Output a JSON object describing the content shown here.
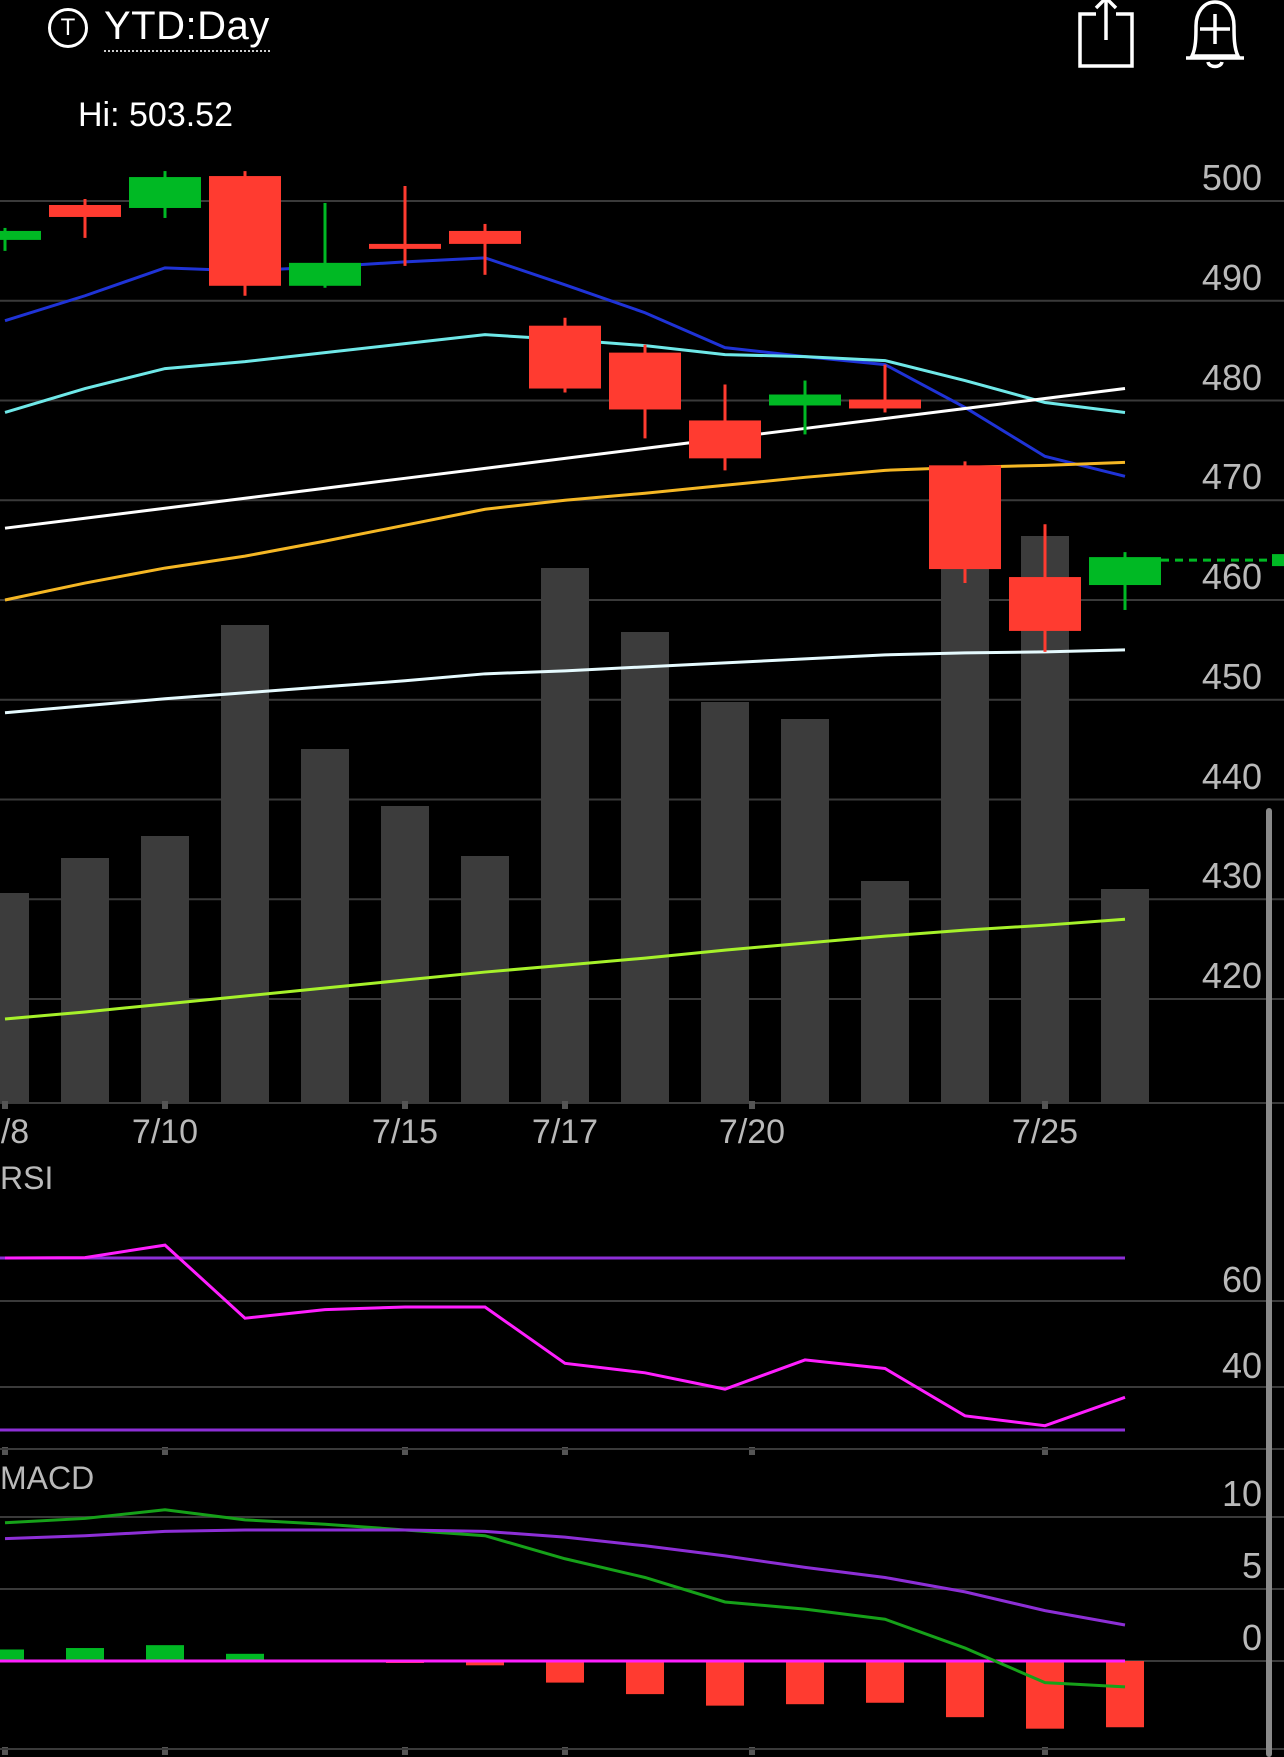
{
  "header": {
    "badge": "T",
    "title": "YTD:Day",
    "icons": [
      "share-icon",
      "add-alert-icon"
    ]
  },
  "hi_label": "Hi: 503.52",
  "chart_data": {
    "type": "candlestick",
    "x_tick_labels": [
      "/8",
      "7/10",
      "7/15",
      "7/17",
      "7/20",
      "7/25"
    ],
    "price_axis": {
      "ticks": [
        500,
        490,
        480,
        470,
        460,
        450,
        440,
        430,
        420
      ]
    },
    "candles": [
      {
        "open": 496.1,
        "close": 497.0,
        "high": 497.3,
        "low": 495.0,
        "dir": "up"
      },
      {
        "open": 499.6,
        "close": 498.4,
        "high": 500.2,
        "low": 496.3,
        "dir": "down"
      },
      {
        "open": 499.3,
        "close": 502.4,
        "high": 503.0,
        "low": 498.3,
        "dir": "up"
      },
      {
        "open": 502.5,
        "close": 491.5,
        "high": 503.0,
        "low": 490.5,
        "dir": "down"
      },
      {
        "open": 491.5,
        "close": 493.8,
        "high": 499.8,
        "low": 491.3,
        "dir": "up"
      },
      {
        "open": 495.7,
        "close": 495.2,
        "high": 501.5,
        "low": 493.5,
        "dir": "down"
      },
      {
        "open": 497.0,
        "close": 495.7,
        "high": 497.7,
        "low": 492.6,
        "dir": "down"
      },
      {
        "open": 487.5,
        "close": 481.2,
        "high": 488.3,
        "low": 480.8,
        "dir": "down"
      },
      {
        "open": 484.8,
        "close": 479.1,
        "high": 485.6,
        "low": 476.2,
        "dir": "down"
      },
      {
        "open": 478.0,
        "close": 474.2,
        "high": 481.6,
        "low": 473.0,
        "dir": "down"
      },
      {
        "open": 479.5,
        "close": 480.6,
        "high": 482.0,
        "low": 476.6,
        "dir": "up"
      },
      {
        "open": 480.1,
        "close": 479.2,
        "high": 483.6,
        "low": 478.8,
        "dir": "down"
      },
      {
        "open": 473.5,
        "close": 463.1,
        "high": 473.9,
        "low": 461.7,
        "dir": "down"
      },
      {
        "open": 462.3,
        "close": 456.9,
        "high": 467.6,
        "low": 454.8,
        "dir": "down"
      },
      {
        "open": 461.5,
        "close": 464.3,
        "high": 464.8,
        "low": 459.0,
        "dir": "up"
      }
    ],
    "last_price": 464.0,
    "volume_relative": [
      0.21,
      0.245,
      0.267,
      0.478,
      0.354,
      0.297,
      0.247,
      0.535,
      0.471,
      0.401,
      0.384,
      0.222,
      0.538,
      0.567,
      0.214
    ],
    "moving_averages": [
      {
        "color": "#1f33d6",
        "values": [
          488.0,
          490.5,
          493.3,
          493.0,
          493.4,
          493.9,
          494.3,
          491.6,
          488.8,
          485.3,
          484.4,
          483.6,
          479.3,
          474.4,
          472.4
        ]
      },
      {
        "color": "#6fe8e8",
        "values": [
          478.8,
          481.2,
          483.2,
          483.9,
          484.8,
          485.7,
          486.6,
          486.1,
          485.5,
          484.6,
          484.4,
          484.0,
          482.0,
          479.8,
          478.8
        ]
      },
      {
        "color": "#ffffff",
        "values": [
          467.2,
          468.2,
          469.2,
          470.2,
          471.2,
          472.2,
          473.2,
          474.2,
          475.2,
          476.2,
          477.2,
          478.2,
          479.2,
          480.2,
          481.2
        ]
      },
      {
        "color": "#f5b724",
        "values": [
          460.0,
          461.7,
          463.2,
          464.4,
          465.9,
          467.5,
          469.1,
          470.0,
          470.7,
          471.5,
          472.3,
          473.0,
          473.3,
          473.5,
          473.8
        ]
      },
      {
        "color": "#e6fbff",
        "values": [
          448.7,
          449.4,
          450.1,
          450.7,
          451.3,
          451.9,
          452.6,
          452.9,
          453.3,
          453.7,
          454.1,
          454.5,
          454.7,
          454.8,
          455.0
        ]
      },
      {
        "color": "#a6f12a",
        "values": [
          418.0,
          418.7,
          419.5,
          420.3,
          421.1,
          421.9,
          422.7,
          423.4,
          424.1,
          424.9,
          425.6,
          426.3,
          426.9,
          427.4,
          428.0
        ]
      }
    ],
    "rsi": {
      "title": "RSI",
      "ticks": [
        60,
        40
      ],
      "upper": 70,
      "lower": 30,
      "values": [
        70.0,
        70.1,
        73.0,
        56.0,
        58.0,
        58.6,
        58.6,
        45.5,
        43.3,
        39.5,
        46.3,
        44.3,
        33.3,
        31.0,
        37.6
      ]
    },
    "macd": {
      "title": "MACD",
      "ticks": [
        10,
        5,
        0
      ],
      "macd_line": [
        9.6,
        9.9,
        10.5,
        9.8,
        9.5,
        9.1,
        8.7,
        7.1,
        5.8,
        4.1,
        3.6,
        2.9,
        0.9,
        -1.5,
        -1.8
      ],
      "signal_line": [
        8.5,
        8.7,
        9.0,
        9.1,
        9.1,
        9.1,
        9.0,
        8.6,
        8.0,
        7.3,
        6.5,
        5.8,
        4.8,
        3.5,
        2.5
      ],
      "histogram": [
        0.8,
        0.9,
        1.1,
        0.5,
        0.1,
        -0.1,
        -0.3,
        -1.5,
        -2.3,
        -3.1,
        -3.0,
        -2.9,
        -3.9,
        -4.7,
        -4.6
      ]
    },
    "colors": {
      "up": "#00b924",
      "down": "#ff3b30",
      "volume": "#3c3c3c",
      "rsi_line": "#ff1fff",
      "rsi_band": "#8d2fd6",
      "macd_line": "#16a119",
      "signal_line": "#8d2fd6",
      "grid": "#3a3a3a",
      "axis_text": "#b9b9b9"
    }
  }
}
